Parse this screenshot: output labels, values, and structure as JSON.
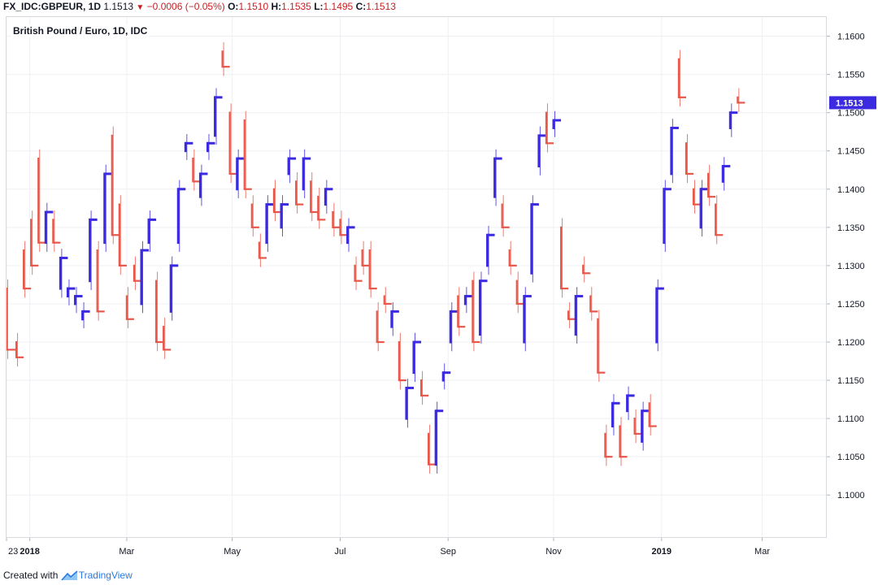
{
  "header": {
    "symbol": "FX_IDC:GBPEUR, 1D",
    "last": "1.1513",
    "change": "−0.0006 (−0.05%)",
    "o_label": "O:",
    "o_value": "1.1510",
    "h_label": "H:",
    "h_value": "1.1535",
    "l_label": "L:",
    "l_value": "1.1495",
    "c_label": "C:",
    "c_value": "1.1513"
  },
  "legend": {
    "title": "British Pound / Euro, 1D, IDC"
  },
  "footer": {
    "created_with": "Created with",
    "brand": "TradingView"
  },
  "colors": {
    "up": "#3b2ae0",
    "down": "#e8584a",
    "grid": "#eef0f3",
    "axis_text": "#131722",
    "last_price_bg": "#3b2ae0"
  },
  "chart_data": {
    "type": "line",
    "title": "British Pound / Euro, 1D, IDC",
    "xlabel": "",
    "ylabel": "",
    "ylim": [
      1.0945,
      1.1625
    ],
    "grid": true,
    "last_price": "1.1513",
    "y_ticks": [
      "1.1000",
      "1.1050",
      "1.1100",
      "1.1150",
      "1.1200",
      "1.1250",
      "1.1300",
      "1.1350",
      "1.1400",
      "1.1450",
      "1.1500",
      "1.1550",
      "1.1600"
    ],
    "x_ticks": [
      {
        "label": "23",
        "t": 0.0
      },
      {
        "label": "2018",
        "t": 9.5,
        "bold": true
      },
      {
        "label": "Mar",
        "t": 49
      },
      {
        "label": "May",
        "t": 92
      },
      {
        "label": "Jul",
        "t": 136
      },
      {
        "label": "Sep",
        "t": 180
      },
      {
        "label": "Nov",
        "t": 223
      },
      {
        "label": "2019",
        "t": 267,
        "bold": true
      },
      {
        "label": "Mar",
        "t": 308
      }
    ],
    "t_range": [
      0,
      334
    ],
    "series": [
      {
        "name": "GBPEUR",
        "points": [
          [
            0,
            1.127,
            1.119
          ],
          [
            4,
            1.12,
            1.118
          ],
          [
            7,
            1.132,
            1.127
          ],
          [
            10,
            1.136,
            1.13
          ],
          [
            13,
            1.144,
            1.133
          ],
          [
            16,
            1.133,
            1.137
          ],
          [
            19,
            1.136,
            1.133
          ],
          [
            22,
            1.127,
            1.131
          ],
          [
            25,
            1.126,
            1.127
          ],
          [
            28,
            1.125,
            1.126
          ],
          [
            31,
            1.123,
            1.124
          ],
          [
            34,
            1.128,
            1.136
          ],
          [
            37,
            1.132,
            1.124
          ],
          [
            40,
            1.133,
            1.142
          ],
          [
            43,
            1.147,
            1.134
          ],
          [
            46,
            1.138,
            1.13
          ],
          [
            49,
            1.126,
            1.123
          ],
          [
            52,
            1.13,
            1.128
          ],
          [
            55,
            1.125,
            1.132
          ],
          [
            58,
            1.133,
            1.136
          ],
          [
            61,
            1.128,
            1.12
          ],
          [
            64,
            1.122,
            1.119
          ],
          [
            67,
            1.124,
            1.13
          ],
          [
            70,
            1.133,
            1.14
          ],
          [
            73,
            1.145,
            1.146
          ],
          [
            76,
            1.144,
            1.141
          ],
          [
            79,
            1.139,
            1.142
          ],
          [
            82,
            1.145,
            1.146
          ],
          [
            85,
            1.147,
            1.152
          ],
          [
            88,
            1.158,
            1.156
          ],
          [
            91,
            1.15,
            1.142
          ],
          [
            94,
            1.14,
            1.144
          ],
          [
            97,
            1.149,
            1.14
          ],
          [
            100,
            1.138,
            1.135
          ],
          [
            103,
            1.133,
            1.131
          ],
          [
            106,
            1.133,
            1.138
          ],
          [
            109,
            1.14,
            1.137
          ],
          [
            112,
            1.135,
            1.138
          ],
          [
            115,
            1.142,
            1.144
          ],
          [
            118,
            1.141,
            1.138
          ],
          [
            121,
            1.14,
            1.144
          ],
          [
            124,
            1.141,
            1.137
          ],
          [
            127,
            1.139,
            1.136
          ],
          [
            130,
            1.138,
            1.14
          ],
          [
            133,
            1.137,
            1.135
          ],
          [
            136,
            1.136,
            1.134
          ],
          [
            139,
            1.133,
            1.135
          ],
          [
            142,
            1.13,
            1.128
          ],
          [
            145,
            1.132,
            1.13
          ],
          [
            148,
            1.132,
            1.127
          ],
          [
            151,
            1.124,
            1.12
          ],
          [
            154,
            1.126,
            1.125
          ],
          [
            157,
            1.122,
            1.124
          ],
          [
            160,
            1.12,
            1.115
          ],
          [
            163,
            1.11,
            1.114
          ],
          [
            166,
            1.116,
            1.12
          ],
          [
            169,
            1.115,
            1.113
          ],
          [
            172,
            1.108,
            1.104
          ],
          [
            175,
            1.104,
            1.111
          ],
          [
            178,
            1.115,
            1.116
          ],
          [
            181,
            1.12,
            1.124
          ],
          [
            184,
            1.126,
            1.122
          ],
          [
            187,
            1.125,
            1.126
          ],
          [
            190,
            1.128,
            1.12
          ],
          [
            193,
            1.121,
            1.128
          ],
          [
            196,
            1.13,
            1.134
          ],
          [
            199,
            1.139,
            1.144
          ],
          [
            202,
            1.138,
            1.135
          ],
          [
            205,
            1.132,
            1.13
          ],
          [
            208,
            1.128,
            1.125
          ],
          [
            211,
            1.12,
            1.126
          ],
          [
            214,
            1.129,
            1.138
          ],
          [
            217,
            1.143,
            1.147
          ],
          [
            220,
            1.15,
            1.146
          ],
          [
            223,
            1.148,
            1.149
          ],
          [
            226,
            1.135,
            1.127
          ],
          [
            229,
            1.124,
            1.123
          ],
          [
            232,
            1.121,
            1.126
          ],
          [
            235,
            1.13,
            1.129
          ],
          [
            238,
            1.126,
            1.124
          ],
          [
            241,
            1.123,
            1.116
          ],
          [
            244,
            1.108,
            1.105
          ],
          [
            247,
            1.109,
            1.112
          ],
          [
            250,
            1.109,
            1.105
          ],
          [
            253,
            1.111,
            1.113
          ],
          [
            256,
            1.11,
            1.108
          ],
          [
            259,
            1.107,
            1.111
          ],
          [
            262,
            1.112,
            1.109
          ],
          [
            265,
            1.12,
            1.127
          ],
          [
            268,
            1.133,
            1.14
          ],
          [
            271,
            1.142,
            1.148
          ],
          [
            274,
            1.157,
            1.152
          ],
          [
            277,
            1.146,
            1.142
          ],
          [
            280,
            1.14,
            1.138
          ],
          [
            283,
            1.135,
            1.14
          ],
          [
            286,
            1.142,
            1.139
          ],
          [
            289,
            1.138,
            1.134
          ],
          [
            292,
            1.141,
            1.143
          ],
          [
            295,
            1.148,
            1.15
          ],
          [
            298,
            1.152,
            1.1513
          ]
        ]
      }
    ]
  }
}
